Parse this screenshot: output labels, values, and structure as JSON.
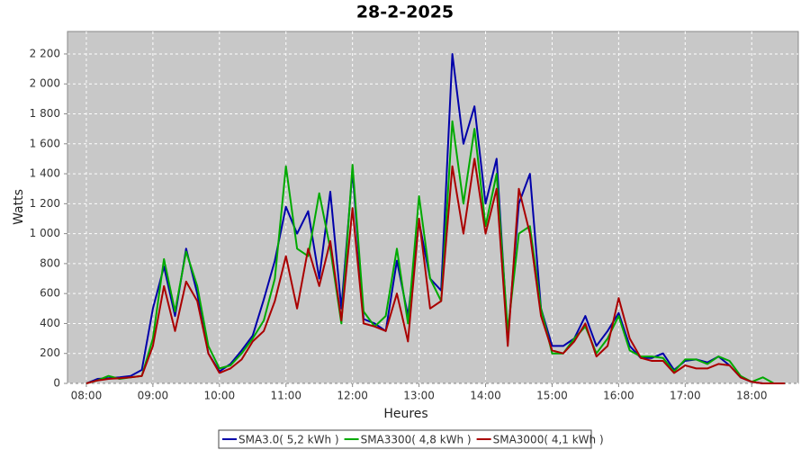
{
  "chart_data": {
    "type": "line",
    "title": "28-2-2025",
    "x_label": "Heures",
    "y_label": "Watts",
    "x": [
      "08:00",
      "08:10",
      "08:20",
      "08:30",
      "08:40",
      "08:50",
      "09:00",
      "09:10",
      "09:20",
      "09:30",
      "09:40",
      "09:50",
      "10:00",
      "10:10",
      "10:20",
      "10:30",
      "10:40",
      "10:50",
      "11:00",
      "11:10",
      "11:20",
      "11:30",
      "11:40",
      "11:50",
      "12:00",
      "12:10",
      "12:20",
      "12:30",
      "12:40",
      "12:50",
      "13:00",
      "13:10",
      "13:20",
      "13:30",
      "13:40",
      "13:50",
      "14:00",
      "14:10",
      "14:20",
      "14:30",
      "14:40",
      "14:50",
      "15:00",
      "15:10",
      "15:20",
      "15:30",
      "15:40",
      "15:50",
      "16:00",
      "16:10",
      "16:20",
      "16:30",
      "16:40",
      "16:50",
      "17:00",
      "17:10",
      "17:20",
      "17:30",
      "17:40",
      "17:50",
      "18:00",
      "18:10",
      "18:20",
      "18:30"
    ],
    "xlim": [
      "07:43",
      "18:42"
    ],
    "xticks": [
      "08:00",
      "09:00",
      "10:00",
      "11:00",
      "12:00",
      "13:00",
      "14:00",
      "15:00",
      "16:00",
      "17:00",
      "18:00"
    ],
    "ylim": [
      0,
      2350
    ],
    "yticks": [
      0,
      200,
      400,
      600,
      800,
      {
        "value": 1000,
        "label": "1 000"
      },
      {
        "value": 1200,
        "label": "1 200"
      },
      {
        "value": 1400,
        "label": "1 400"
      },
      {
        "value": 1600,
        "label": "1 600"
      },
      {
        "value": 1800,
        "label": "1 800"
      },
      {
        "value": 2000,
        "label": "2 000"
      },
      {
        "value": 2200,
        "label": "2 200"
      }
    ],
    "grid": true,
    "legend": "bottom",
    "series": [
      {
        "name": "SMA3.0( 5,2 kWh )",
        "color": "#0000aa",
        "values": [
          0,
          30,
          35,
          40,
          50,
          90,
          500,
          780,
          450,
          900,
          600,
          200,
          80,
          130,
          220,
          320,
          560,
          820,
          1180,
          1000,
          1150,
          700,
          1280,
          500,
          1420,
          430,
          400,
          350,
          820,
          450,
          1080,
          700,
          620,
          2200,
          1600,
          1850,
          1200,
          1500,
          300,
          1200,
          1400,
          500,
          250,
          250,
          300,
          450,
          250,
          350,
          470,
          250,
          170,
          170,
          200,
          90,
          150,
          160,
          140,
          180,
          120,
          40,
          10,
          0,
          0,
          0
        ]
      },
      {
        "name": "SMA3300( 4,8 kWh )",
        "color": "#00aa00",
        "values": [
          0,
          20,
          50,
          30,
          40,
          50,
          300,
          830,
          480,
          880,
          650,
          250,
          100,
          120,
          200,
          300,
          420,
          700,
          1450,
          900,
          850,
          1270,
          900,
          400,
          1460,
          480,
          380,
          450,
          900,
          400,
          1250,
          700,
          550,
          1750,
          1200,
          1700,
          1050,
          1400,
          350,
          1000,
          1050,
          500,
          200,
          200,
          300,
          380,
          200,
          300,
          450,
          220,
          180,
          180,
          170,
          80,
          160,
          160,
          130,
          180,
          150,
          50,
          10,
          40,
          0,
          0
        ]
      },
      {
        "name": "SMA3000( 4,1 kWh )",
        "color": "#aa0000",
        "values": [
          0,
          20,
          30,
          35,
          40,
          50,
          250,
          650,
          350,
          680,
          550,
          200,
          70,
          100,
          160,
          280,
          350,
          550,
          850,
          500,
          900,
          650,
          950,
          420,
          1170,
          400,
          380,
          350,
          600,
          280,
          1100,
          500,
          550,
          1450,
          1000,
          1500,
          1000,
          1300,
          250,
          1300,
          1000,
          450,
          220,
          200,
          280,
          400,
          180,
          250,
          570,
          300,
          170,
          150,
          150,
          70,
          120,
          100,
          100,
          130,
          120,
          40,
          10,
          0,
          0,
          0
        ]
      }
    ]
  }
}
